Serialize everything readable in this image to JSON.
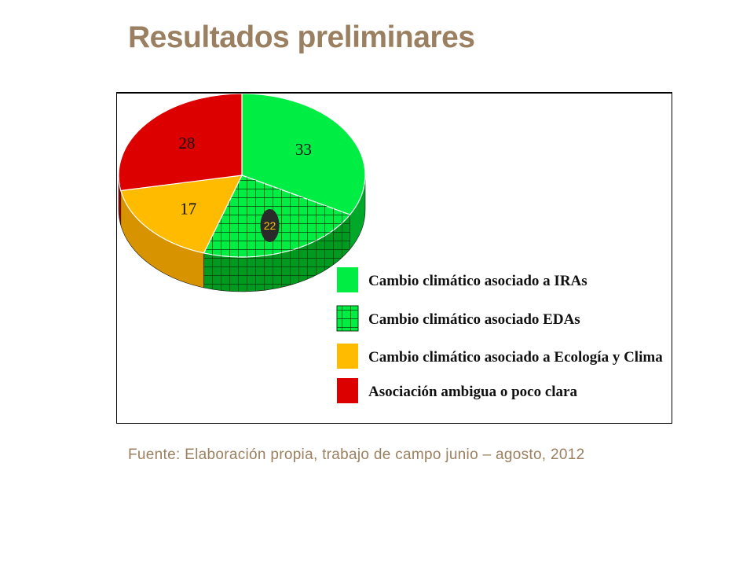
{
  "slide": {
    "title": "Resultados preliminares",
    "source_note": "Fuente: Elaboración propia, trabajo de campo junio – agosto, 2012"
  },
  "chart_data": {
    "type": "pie",
    "style": "3d",
    "slices": [
      {
        "label": "Cambio climático asociado a IRAs",
        "value": 33,
        "color": "#00ee44",
        "side_color": "#00a82a",
        "pattern": "none"
      },
      {
        "label": "Cambio climático asociado EDAs",
        "value": 22,
        "color": "#00ee44",
        "side_color": "#009a20",
        "pattern": "grid"
      },
      {
        "label": "Cambio climático asociado a Ecología y Clima",
        "value": 17,
        "color": "#ffbb00",
        "side_color": "#d89400",
        "pattern": "none"
      },
      {
        "label": "Asociación ambigua o poco clara",
        "value": 28,
        "color": "#dd0000",
        "side_color": "#a00000",
        "pattern": "none"
      }
    ],
    "legend_position": "bottom-right",
    "highlighted_label_style": "dark-badge"
  }
}
